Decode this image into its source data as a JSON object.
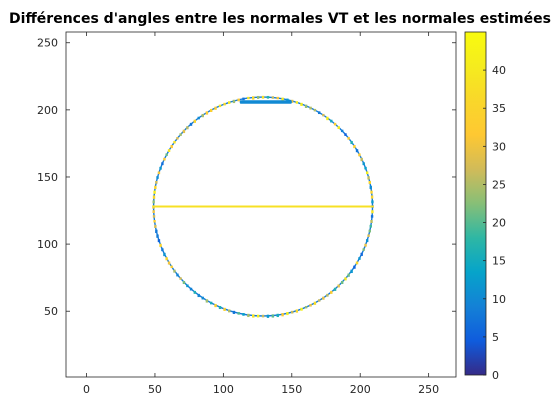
{
  "chart_data": {
    "type": "heatmap",
    "title": "Différences d'angles entre les normales VT et les normales estimées",
    "xlabel": "",
    "ylabel": "",
    "xlim": [
      -15,
      270
    ],
    "ylim": [
      258,
      1
    ],
    "x_ticks": [
      0,
      50,
      100,
      150,
      200,
      250
    ],
    "y_ticks": [
      50,
      100,
      150,
      200,
      250
    ],
    "image_extent": {
      "x": [
        0,
        257
      ],
      "y": [
        1,
        258
      ]
    },
    "background_value": 0,
    "colorbar": {
      "colormap": "parula",
      "clim": [
        0,
        45
      ],
      "ticks": [
        0,
        5,
        10,
        15,
        20,
        25,
        30,
        35,
        40
      ]
    },
    "features": [
      {
        "kind": "circle-outline",
        "center": [
          129,
          128
        ],
        "radius": 80,
        "value_range": [
          5,
          42
        ]
      },
      {
        "kind": "horizontal-line",
        "y": 128,
        "x_range": [
          48,
          210
        ],
        "value": 38
      },
      {
        "kind": "bottom-arc-segment",
        "y": 206,
        "x_range": [
          112,
          150
        ],
        "value": 10
      }
    ]
  }
}
